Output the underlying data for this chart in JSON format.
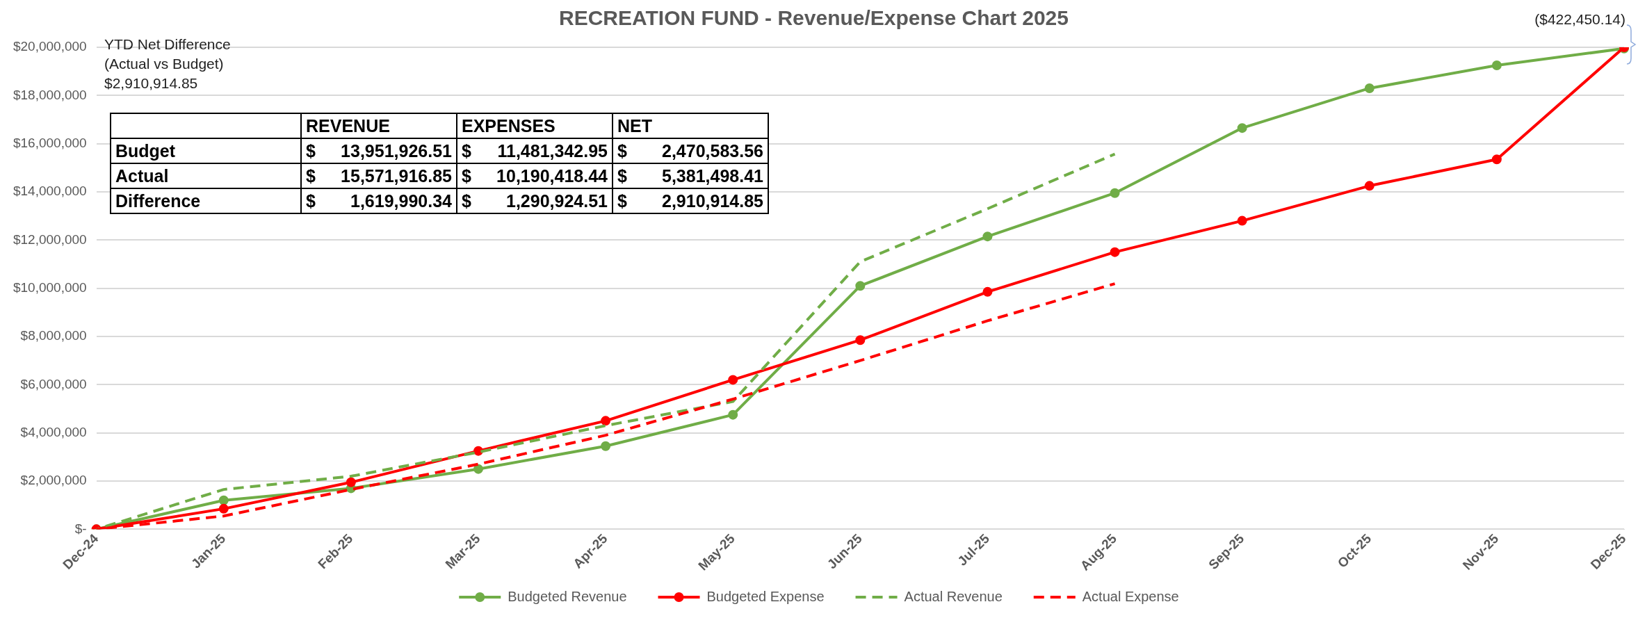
{
  "chart_data": {
    "type": "line",
    "title": "RECREATION FUND - Revenue/Expense Chart 2025",
    "categories": [
      "Dec-24",
      "Jan-25",
      "Feb-25",
      "Mar-25",
      "Apr-25",
      "May-25",
      "Jun-25",
      "Jul-25",
      "Aug-25",
      "Sep-25",
      "Oct-25",
      "Nov-25",
      "Dec-25"
    ],
    "series": [
      {
        "name": "Budgeted Revenue",
        "color": "#70ad47",
        "marker": "circle",
        "line_style": "solid",
        "values": [
          0,
          1200000,
          1700000,
          2500000,
          3450000,
          4750000,
          10100000,
          12150000,
          13950000,
          16650000,
          18300000,
          19250000,
          19950000
        ]
      },
      {
        "name": "Budgeted Expense",
        "color": "#ff0000",
        "marker": "circle",
        "line_style": "solid",
        "values": [
          0,
          850000,
          1950000,
          3250000,
          4500000,
          6200000,
          7850000,
          9850000,
          11500000,
          12800000,
          14250000,
          15350000,
          20000000
        ]
      },
      {
        "name": "Actual Revenue",
        "color": "#70ad47",
        "marker": "none",
        "line_style": "dashed",
        "values": [
          0,
          1650000,
          2200000,
          3200000,
          4300000,
          5300000,
          11100000,
          13300000,
          15570000,
          null,
          null,
          null,
          null
        ]
      },
      {
        "name": "Actual Expense",
        "color": "#ff0000",
        "marker": "none",
        "line_style": "dashed",
        "values": [
          0,
          550000,
          1650000,
          2700000,
          3900000,
          5400000,
          7000000,
          8650000,
          10190000,
          null,
          null,
          null,
          null
        ]
      }
    ],
    "ylim": [
      0,
      20000000
    ],
    "yticks": [
      {
        "value": 0,
        "label": "$-"
      },
      {
        "value": 2000000,
        "label": "$2,000,000"
      },
      {
        "value": 4000000,
        "label": "$4,000,000"
      },
      {
        "value": 6000000,
        "label": "$6,000,000"
      },
      {
        "value": 8000000,
        "label": "$8,000,000"
      },
      {
        "value": 10000000,
        "label": "$10,000,000"
      },
      {
        "value": 12000000,
        "label": "$12,000,000"
      },
      {
        "value": 14000000,
        "label": "$14,000,000"
      },
      {
        "value": 16000000,
        "label": "$16,000,000"
      },
      {
        "value": 18000000,
        "label": "$18,000,000"
      },
      {
        "value": 20000000,
        "label": "$20,000,000"
      }
    ],
    "grid": "y",
    "legend": "bottom",
    "annotations": [
      "YTD Net Difference",
      "(Actual vs Budget)",
      "$2,910,914.85",
      "REVENUE",
      "EXPENSES",
      "NET",
      "Budget",
      "$ 13,951,926.51",
      "$ 11,481,342.95",
      "$ 2,470,583.56",
      "Actual",
      "$ 15,571,916.85",
      "$ 10,190,418.44",
      "$ 5,381,498.41",
      "Difference",
      "$ 1,619,990.34",
      "$ 1,290,924.51",
      "$ 2,910,914.85",
      {
        "text": "($422,450.14)",
        "x": "Dec-25",
        "y": 20000000
      }
    ]
  }
}
